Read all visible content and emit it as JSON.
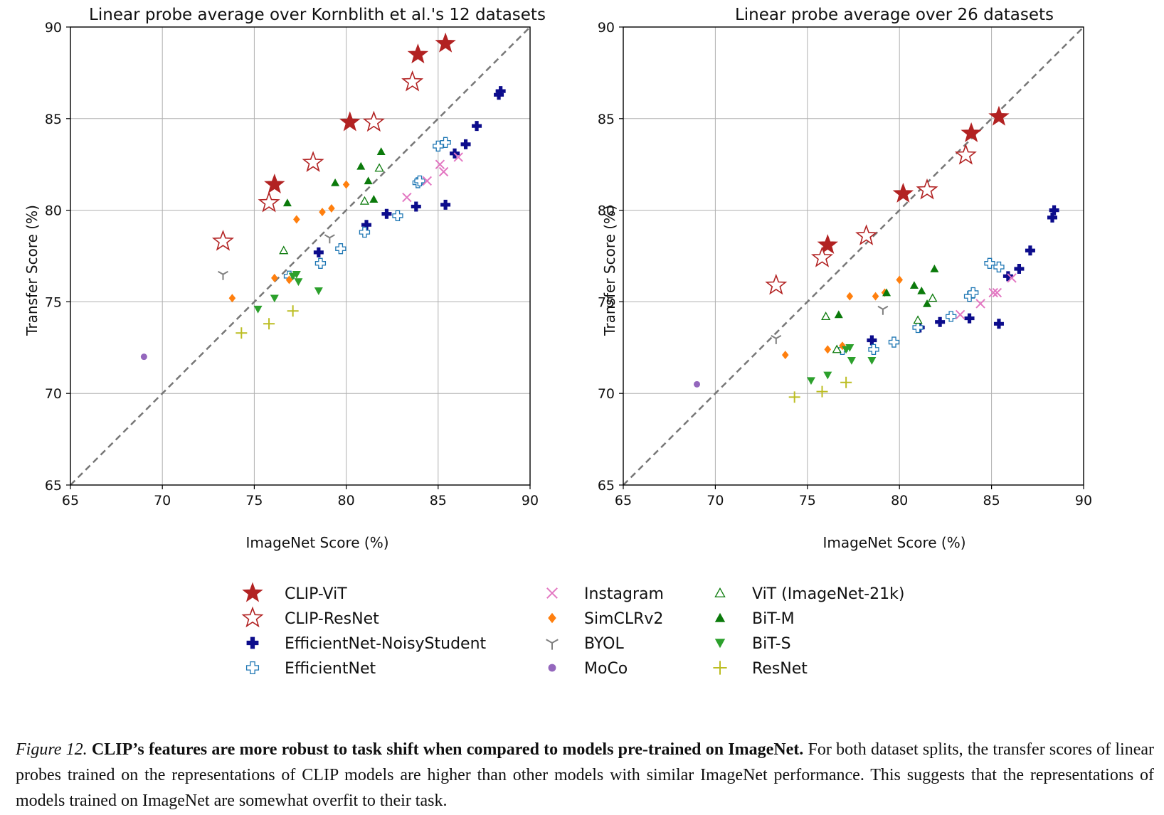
{
  "legend": [
    {
      "name": "CLIP-ViT",
      "marker": "star-filled",
      "color": "#b22222"
    },
    {
      "name": "CLIP-ResNet",
      "marker": "star-open",
      "color": "#b22222"
    },
    {
      "name": "EfficientNet-NoisyStudent",
      "marker": "plus-filled",
      "color": "#0c0c8c"
    },
    {
      "name": "EfficientNet",
      "marker": "plus-open",
      "color": "#1f77b4"
    },
    {
      "name": "Instagram",
      "marker": "x",
      "color": "#e377c2"
    },
    {
      "name": "SimCLRv2",
      "marker": "diamond",
      "color": "#ff7f0e"
    },
    {
      "name": "BYOL",
      "marker": "tri-down-line",
      "color": "#7f7f7f"
    },
    {
      "name": "MoCo",
      "marker": "circle",
      "color": "#9467bd"
    },
    {
      "name": "ViT (ImageNet-21k)",
      "marker": "triangle-open",
      "color": "#0b7a0b"
    },
    {
      "name": "BiT-M",
      "marker": "triangle-up",
      "color": "#0b7a0b"
    },
    {
      "name": "BiT-S",
      "marker": "triangle-down",
      "color": "#2ca02c"
    },
    {
      "name": "ResNet",
      "marker": "plus-line",
      "color": "#bcbd22"
    }
  ],
  "chart_data": [
    {
      "type": "scatter",
      "title": "Linear probe average over Kornblith et al.'s 12 datasets",
      "xlabel": "ImageNet Score (%)",
      "ylabel": "Transfer Score (%)",
      "xlim": [
        65,
        90
      ],
      "ylim": [
        65,
        90
      ],
      "xticks": [
        65,
        70,
        75,
        80,
        85,
        90
      ],
      "yticks": [
        65,
        70,
        75,
        80,
        85,
        90
      ],
      "grid": true,
      "diagonal_reference": true,
      "series": [
        {
          "name": "CLIP-ViT",
          "points": [
            [
              76.1,
              81.4
            ],
            [
              80.2,
              84.8
            ],
            [
              83.9,
              88.5
            ],
            [
              85.4,
              89.1
            ]
          ]
        },
        {
          "name": "CLIP-ResNet",
          "points": [
            [
              73.3,
              78.3
            ],
            [
              75.8,
              80.4
            ],
            [
              78.2,
              82.6
            ],
            [
              81.5,
              84.8
            ],
            [
              83.6,
              87.0
            ]
          ]
        },
        {
          "name": "EfficientNet-NoisyStudent",
          "points": [
            [
              78.5,
              77.7
            ],
            [
              81.1,
              79.2
            ],
            [
              82.2,
              79.8
            ],
            [
              83.8,
              80.2
            ],
            [
              85.4,
              80.3
            ],
            [
              85.9,
              83.1
            ],
            [
              86.5,
              83.6
            ],
            [
              87.1,
              84.6
            ],
            [
              88.3,
              86.3
            ],
            [
              88.4,
              86.5
            ]
          ]
        },
        {
          "name": "EfficientNet",
          "points": [
            [
              76.9,
              76.4
            ],
            [
              78.6,
              77.1
            ],
            [
              79.7,
              77.9
            ],
            [
              81.0,
              78.8
            ],
            [
              82.8,
              79.7
            ],
            [
              83.9,
              81.5
            ],
            [
              84.0,
              81.6
            ],
            [
              85.0,
              83.5
            ],
            [
              85.4,
              83.7
            ]
          ]
        },
        {
          "name": "Instagram",
          "points": [
            [
              83.3,
              80.7
            ],
            [
              84.4,
              81.6
            ],
            [
              85.3,
              82.1
            ],
            [
              85.1,
              82.5
            ],
            [
              86.1,
              82.9
            ]
          ]
        },
        {
          "name": "SimCLRv2",
          "points": [
            [
              73.8,
              75.2
            ],
            [
              76.1,
              76.3
            ],
            [
              76.9,
              76.2
            ],
            [
              77.3,
              79.5
            ],
            [
              78.7,
              79.9
            ],
            [
              79.2,
              80.1
            ],
            [
              80.0,
              81.4
            ]
          ]
        },
        {
          "name": "BYOL",
          "points": [
            [
              73.3,
              76.5
            ],
            [
              79.1,
              78.5
            ]
          ]
        },
        {
          "name": "MoCo",
          "points": [
            [
              69.0,
              72.0
            ]
          ]
        },
        {
          "name": "ViT (ImageNet-21k)",
          "points": [
            [
              76.6,
              77.8
            ],
            [
              81.0,
              80.5
            ],
            [
              81.8,
              82.3
            ]
          ]
        },
        {
          "name": "BiT-M",
          "points": [
            [
              76.8,
              80.4
            ],
            [
              79.4,
              81.5
            ],
            [
              80.8,
              82.4
            ],
            [
              81.2,
              81.6
            ],
            [
              81.5,
              80.6
            ],
            [
              81.9,
              83.2
            ]
          ]
        },
        {
          "name": "BiT-S",
          "points": [
            [
              75.2,
              74.6
            ],
            [
              76.1,
              75.2
            ],
            [
              77.1,
              76.4
            ],
            [
              77.3,
              76.5
            ],
            [
              77.4,
              76.1
            ],
            [
              78.5,
              75.6
            ]
          ]
        },
        {
          "name": "ResNet",
          "points": [
            [
              74.3,
              73.3
            ],
            [
              75.8,
              73.8
            ],
            [
              77.1,
              74.5
            ]
          ]
        }
      ]
    },
    {
      "type": "scatter",
      "title": "Linear probe average over 26 datasets",
      "xlabel": "ImageNet Score (%)",
      "ylabel": "Transfer Score (%)",
      "xlim": [
        65,
        90
      ],
      "ylim": [
        65,
        90
      ],
      "xticks": [
        65,
        70,
        75,
        80,
        85,
        90
      ],
      "yticks": [
        65,
        70,
        75,
        80,
        85,
        90
      ],
      "grid": true,
      "diagonal_reference": true,
      "series": [
        {
          "name": "CLIP-ViT",
          "points": [
            [
              76.1,
              78.1
            ],
            [
              80.2,
              80.9
            ],
            [
              83.9,
              84.2
            ],
            [
              85.4,
              85.1
            ]
          ]
        },
        {
          "name": "CLIP-ResNet",
          "points": [
            [
              73.3,
              75.9
            ],
            [
              75.8,
              77.4
            ],
            [
              78.2,
              78.6
            ],
            [
              81.5,
              81.1
            ],
            [
              83.6,
              83.0
            ]
          ]
        },
        {
          "name": "EfficientNet-NoisyStudent",
          "points": [
            [
              78.5,
              72.9
            ],
            [
              81.1,
              73.6
            ],
            [
              82.2,
              73.9
            ],
            [
              83.8,
              74.1
            ],
            [
              85.4,
              73.8
            ],
            [
              85.9,
              76.4
            ],
            [
              86.5,
              76.8
            ],
            [
              87.1,
              77.8
            ],
            [
              88.3,
              79.6
            ],
            [
              88.4,
              80.0
            ]
          ]
        },
        {
          "name": "EfficientNet",
          "points": [
            [
              76.9,
              72.4
            ],
            [
              78.6,
              72.4
            ],
            [
              79.7,
              72.8
            ],
            [
              81.0,
              73.6
            ],
            [
              82.8,
              74.2
            ],
            [
              83.8,
              75.3
            ],
            [
              84.0,
              75.5
            ],
            [
              84.9,
              77.1
            ],
            [
              85.4,
              76.9
            ]
          ]
        },
        {
          "name": "Instagram",
          "points": [
            [
              83.3,
              74.3
            ],
            [
              84.4,
              74.9
            ],
            [
              85.1,
              75.5
            ],
            [
              85.3,
              75.5
            ],
            [
              86.1,
              76.3
            ]
          ]
        },
        {
          "name": "SimCLRv2",
          "points": [
            [
              73.8,
              72.1
            ],
            [
              76.1,
              72.4
            ],
            [
              76.9,
              72.6
            ],
            [
              77.3,
              75.3
            ],
            [
              78.7,
              75.3
            ],
            [
              79.2,
              75.5
            ],
            [
              80.0,
              76.2
            ]
          ]
        },
        {
          "name": "BYOL",
          "points": [
            [
              73.3,
              73.0
            ],
            [
              79.1,
              74.6
            ]
          ]
        },
        {
          "name": "MoCo",
          "points": [
            [
              69.0,
              70.5
            ]
          ]
        },
        {
          "name": "ViT (ImageNet-21k)",
          "points": [
            [
              76.0,
              74.2
            ],
            [
              76.6,
              72.4
            ],
            [
              81.0,
              74.0
            ],
            [
              81.8,
              75.2
            ]
          ]
        },
        {
          "name": "BiT-M",
          "points": [
            [
              76.7,
              74.3
            ],
            [
              79.3,
              75.5
            ],
            [
              80.8,
              75.9
            ],
            [
              81.2,
              75.6
            ],
            [
              81.5,
              74.9
            ],
            [
              81.9,
              76.8
            ]
          ]
        },
        {
          "name": "BiT-S",
          "points": [
            [
              75.2,
              70.7
            ],
            [
              76.1,
              71.0
            ],
            [
              77.1,
              72.4
            ],
            [
              77.3,
              72.5
            ],
            [
              77.4,
              71.8
            ],
            [
              78.5,
              71.8
            ]
          ]
        },
        {
          "name": "ResNet",
          "points": [
            [
              74.3,
              69.8
            ],
            [
              75.8,
              70.1
            ],
            [
              77.1,
              70.6
            ]
          ]
        }
      ]
    }
  ],
  "caption": {
    "figure_label": "Figure 12.",
    "bold_text": "CLIP’s features are more robust to task shift when compared to models pre-trained on ImageNet.",
    "body_text": "For both dataset splits, the transfer scores of linear probes trained on the representations of CLIP models are higher than other models with similar ImageNet performance. This suggests that the representations of models trained on ImageNet are somewhat overfit to their task."
  }
}
